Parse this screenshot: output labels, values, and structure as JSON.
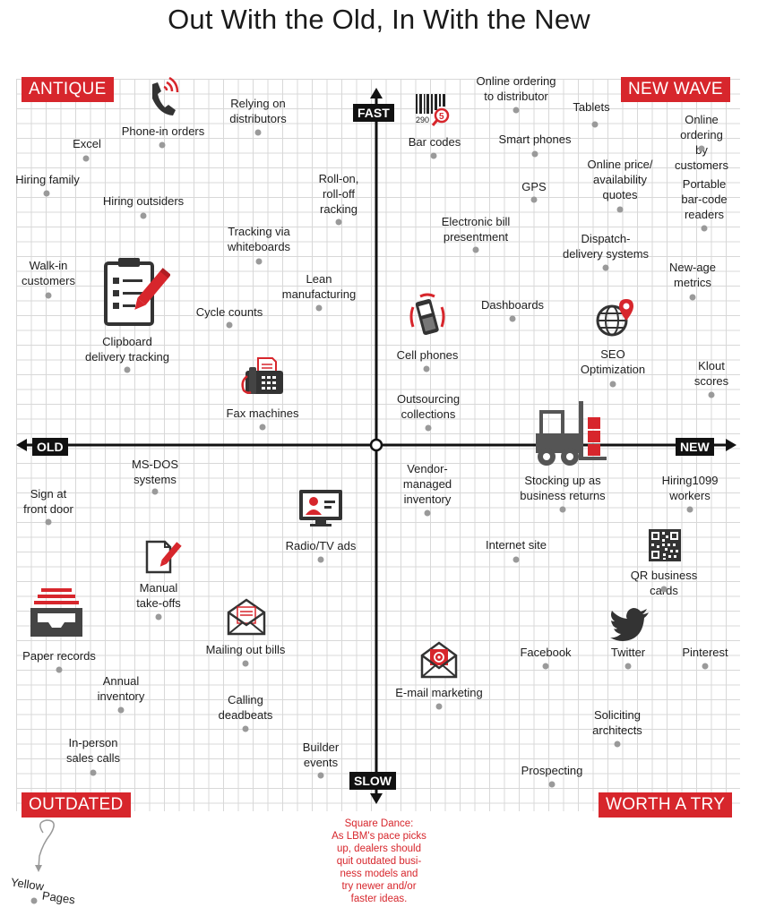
{
  "title": "Out With the Old, In With the New",
  "quadrants": {
    "top_left": "ANTIQUE",
    "top_right": "NEW WAVE",
    "bottom_left": "OUTDATED",
    "bottom_right": "WORTH A TRY"
  },
  "axes": {
    "up": "FAST",
    "down": "SLOW",
    "left": "OLD",
    "right": "NEW"
  },
  "items": [
    {
      "label": "Phone-in orders"
    },
    {
      "label": "Relying on\ndistributors"
    },
    {
      "label": "Excel"
    },
    {
      "label": "Hiring family"
    },
    {
      "label": "Hiring outsiders"
    },
    {
      "label": "Roll-on,\nroll-off\nracking"
    },
    {
      "label": "Tracking via\nwhiteboards"
    },
    {
      "label": "Walk-in\ncustomers"
    },
    {
      "label": "Lean\nmanufacturing"
    },
    {
      "label": "Cycle counts"
    },
    {
      "label": "Clipboard\ndelivery tracking"
    },
    {
      "label": "Fax machines"
    },
    {
      "label": "Online ordering\nto distributor"
    },
    {
      "label": "Tablets"
    },
    {
      "label": "Online ordering\nby customers"
    },
    {
      "label": "Bar codes"
    },
    {
      "label": "Smart phones"
    },
    {
      "label": "Online price/\navailability\nquotes"
    },
    {
      "label": "GPS"
    },
    {
      "label": "Portable\nbar-code\nreaders"
    },
    {
      "label": "Electronic bill\npresentment"
    },
    {
      "label": "Dispatch-\ndelivery systems"
    },
    {
      "label": "New-age\nmetrics"
    },
    {
      "label": "Dashboards"
    },
    {
      "label": "Cell phones"
    },
    {
      "label": "SEO\nOptimization"
    },
    {
      "label": "Klout\nscores"
    },
    {
      "label": "Outsourcing\ncollections"
    },
    {
      "label": "MS-DOS\nsystems"
    },
    {
      "label": "Sign at\nfront door"
    },
    {
      "label": "Radio/TV ads"
    },
    {
      "label": "Manual\ntake-offs"
    },
    {
      "label": "Paper records"
    },
    {
      "label": "Mailing out bills"
    },
    {
      "label": "Annual\ninventory"
    },
    {
      "label": "Calling\ndeadbeats"
    },
    {
      "label": "In-person\nsales calls"
    },
    {
      "label": "Builder\nevents"
    },
    {
      "label": "Vendor-\nmanaged\ninventory"
    },
    {
      "label": "Stocking up as\nbusiness returns"
    },
    {
      "label": "Hiring1099\nworkers"
    },
    {
      "label": "Internet site"
    },
    {
      "label": "QR business cards"
    },
    {
      "label": "Facebook"
    },
    {
      "label": "Twitter"
    },
    {
      "label": "Pinterest"
    },
    {
      "label": "E-mail marketing"
    },
    {
      "label": "Soliciting\narchitects"
    },
    {
      "label": "Prospecting"
    }
  ],
  "outside_item": {
    "word1": "Yellow",
    "word2": "Pages"
  },
  "note": "Square Dance:\nAs LBM's pace picks\nup, dealers should\nquit outdated busi-\nness models and\ntry newer and/or\nfaster ideas.",
  "colors": {
    "accent": "#d7262c",
    "axis": "#111111",
    "dot": "#9a9a9a",
    "grid": "#d8d8d8"
  },
  "icons": [
    "phone-icon",
    "barcode-icon",
    "clipboard-icon",
    "cell-phone-icon",
    "globe-pin-icon",
    "fax-icon",
    "forklift-icon",
    "tv-icon",
    "document-pen-icon",
    "inbox-tray-icon",
    "envelope-icon",
    "qr-code-icon",
    "twitter-bird-icon",
    "email-icon"
  ]
}
